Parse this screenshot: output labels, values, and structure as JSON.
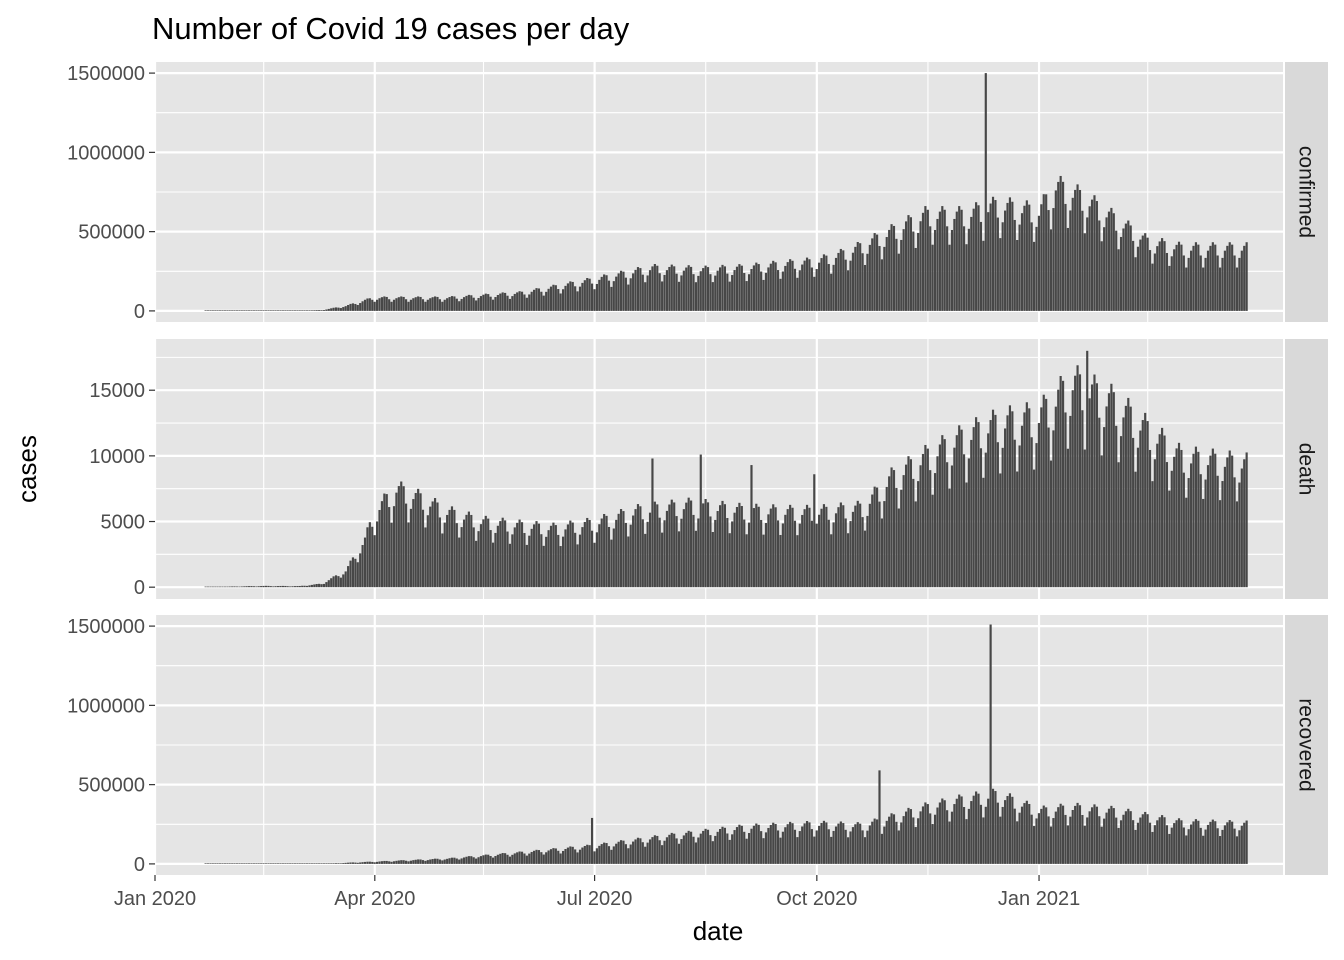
{
  "chart_data": {
    "type": "bar",
    "title": "Number of Covid 19 cases per day",
    "xlabel": "date",
    "ylabel": "cases",
    "x_ticks": [
      "Jan 2020",
      "Apr 2020",
      "Jul 2020",
      "Oct 2020",
      "Jan 2021"
    ],
    "x_tick_dates": [
      "2020-01-01",
      "2020-04-01",
      "2020-07-01",
      "2020-10-01",
      "2021-01-01"
    ],
    "xlim": [
      "2020-01-01",
      "2021-04-12"
    ],
    "data_range": [
      "2020-01-22",
      "2021-03-28"
    ],
    "grid": true,
    "legend": "none",
    "colors": {
      "panel_background": "#e5e5e5",
      "gridline": "#ffffff",
      "bar": "#474747",
      "strip_background": "#d9d9d9"
    },
    "facets": [
      {
        "label": "confirmed",
        "y_ticks": [
          "0",
          "500000",
          "1000000",
          "1500000"
        ],
        "y_tick_values": [
          0,
          500000,
          1000000,
          1500000
        ],
        "ylim": [
          -70000,
          1570000
        ],
        "anchors": [
          [
            "2020-01-22",
            550
          ],
          [
            "2020-02-15",
            3000
          ],
          [
            "2020-03-01",
            2000
          ],
          [
            "2020-03-10",
            5000
          ],
          [
            "2020-03-20",
            30000
          ],
          [
            "2020-03-28",
            65000
          ],
          [
            "2020-04-01",
            80000
          ],
          [
            "2020-05-01",
            80000
          ],
          [
            "2020-06-01",
            110000
          ],
          [
            "2020-07-01",
            190000
          ],
          [
            "2020-07-25",
            260000
          ],
          [
            "2020-08-15",
            250000
          ],
          [
            "2020-09-01",
            260000
          ],
          [
            "2020-09-15",
            280000
          ],
          [
            "2020-10-01",
            300000
          ],
          [
            "2020-10-15",
            360000
          ],
          [
            "2020-11-01",
            480000
          ],
          [
            "2020-11-15",
            580000
          ],
          [
            "2020-12-01",
            580000
          ],
          [
            "2020-12-15",
            640000
          ],
          [
            "2021-01-01",
            600000
          ],
          [
            "2021-01-08",
            760000
          ],
          [
            "2021-01-20",
            680000
          ],
          [
            "2021-02-01",
            560000
          ],
          [
            "2021-02-15",
            420000
          ],
          [
            "2021-03-01",
            380000
          ],
          [
            "2021-03-28",
            380000
          ]
        ],
        "spikes": [
          [
            "2020-12-10",
            1500000
          ]
        ]
      },
      {
        "label": "death",
        "y_ticks": [
          "0",
          "5000",
          "10000",
          "15000"
        ],
        "y_tick_values": [
          0,
          5000,
          10000,
          15000
        ],
        "ylim": [
          -900,
          18900
        ],
        "anchors": [
          [
            "2020-01-22",
            17
          ],
          [
            "2020-02-15",
            90
          ],
          [
            "2020-03-01",
            80
          ],
          [
            "2020-03-10",
            250
          ],
          [
            "2020-03-20",
            1200
          ],
          [
            "2020-03-28",
            3500
          ],
          [
            "2020-04-01",
            5500
          ],
          [
            "2020-04-10",
            7200
          ],
          [
            "2020-04-20",
            6500
          ],
          [
            "2020-05-01",
            5500
          ],
          [
            "2020-05-15",
            4800
          ],
          [
            "2020-06-01",
            4500
          ],
          [
            "2020-06-15",
            4300
          ],
          [
            "2020-07-01",
            4700
          ],
          [
            "2020-07-20",
            5600
          ],
          [
            "2020-08-10",
            6000
          ],
          [
            "2020-09-01",
            5600
          ],
          [
            "2020-09-20",
            5500
          ],
          [
            "2020-10-01",
            5500
          ],
          [
            "2020-10-20",
            5800
          ],
          [
            "2020-11-01",
            8000
          ],
          [
            "2020-11-15",
            9500
          ],
          [
            "2020-12-01",
            11000
          ],
          [
            "2020-12-15",
            12000
          ],
          [
            "2021-01-01",
            12500
          ],
          [
            "2021-01-15",
            15000
          ],
          [
            "2021-02-01",
            13500
          ],
          [
            "2021-02-15",
            11500
          ],
          [
            "2021-03-01",
            9500
          ],
          [
            "2021-03-28",
            9000
          ]
        ],
        "spikes": [
          [
            "2020-07-25",
            9800
          ],
          [
            "2020-08-14",
            10100
          ],
          [
            "2020-09-04",
            9300
          ],
          [
            "2020-09-30",
            8600
          ],
          [
            "2021-01-21",
            18000
          ]
        ]
      },
      {
        "label": "recovered",
        "y_ticks": [
          "0",
          "500000",
          "1000000",
          "1500000"
        ],
        "y_tick_values": [
          0,
          500000,
          1000000,
          1500000
        ],
        "ylim": [
          -70000,
          1570000
        ],
        "anchors": [
          [
            "2020-01-22",
            200
          ],
          [
            "2020-02-15",
            2000
          ],
          [
            "2020-03-01",
            2500
          ],
          [
            "2020-03-15",
            3500
          ],
          [
            "2020-04-01",
            14000
          ],
          [
            "2020-05-01",
            32000
          ],
          [
            "2020-06-01",
            70000
          ],
          [
            "2020-07-01",
            110000
          ],
          [
            "2020-08-01",
            170000
          ],
          [
            "2020-09-01",
            220000
          ],
          [
            "2020-10-01",
            240000
          ],
          [
            "2020-10-20",
            230000
          ],
          [
            "2020-11-01",
            280000
          ],
          [
            "2020-11-15",
            340000
          ],
          [
            "2020-12-01",
            390000
          ],
          [
            "2020-12-15",
            420000
          ],
          [
            "2021-01-01",
            320000
          ],
          [
            "2021-01-15",
            340000
          ],
          [
            "2021-02-01",
            320000
          ],
          [
            "2021-03-01",
            250000
          ],
          [
            "2021-03-28",
            240000
          ]
        ],
        "spikes": [
          [
            "2020-06-30",
            290000
          ],
          [
            "2020-10-27",
            590000
          ],
          [
            "2020-12-12",
            1510000
          ]
        ]
      }
    ]
  }
}
